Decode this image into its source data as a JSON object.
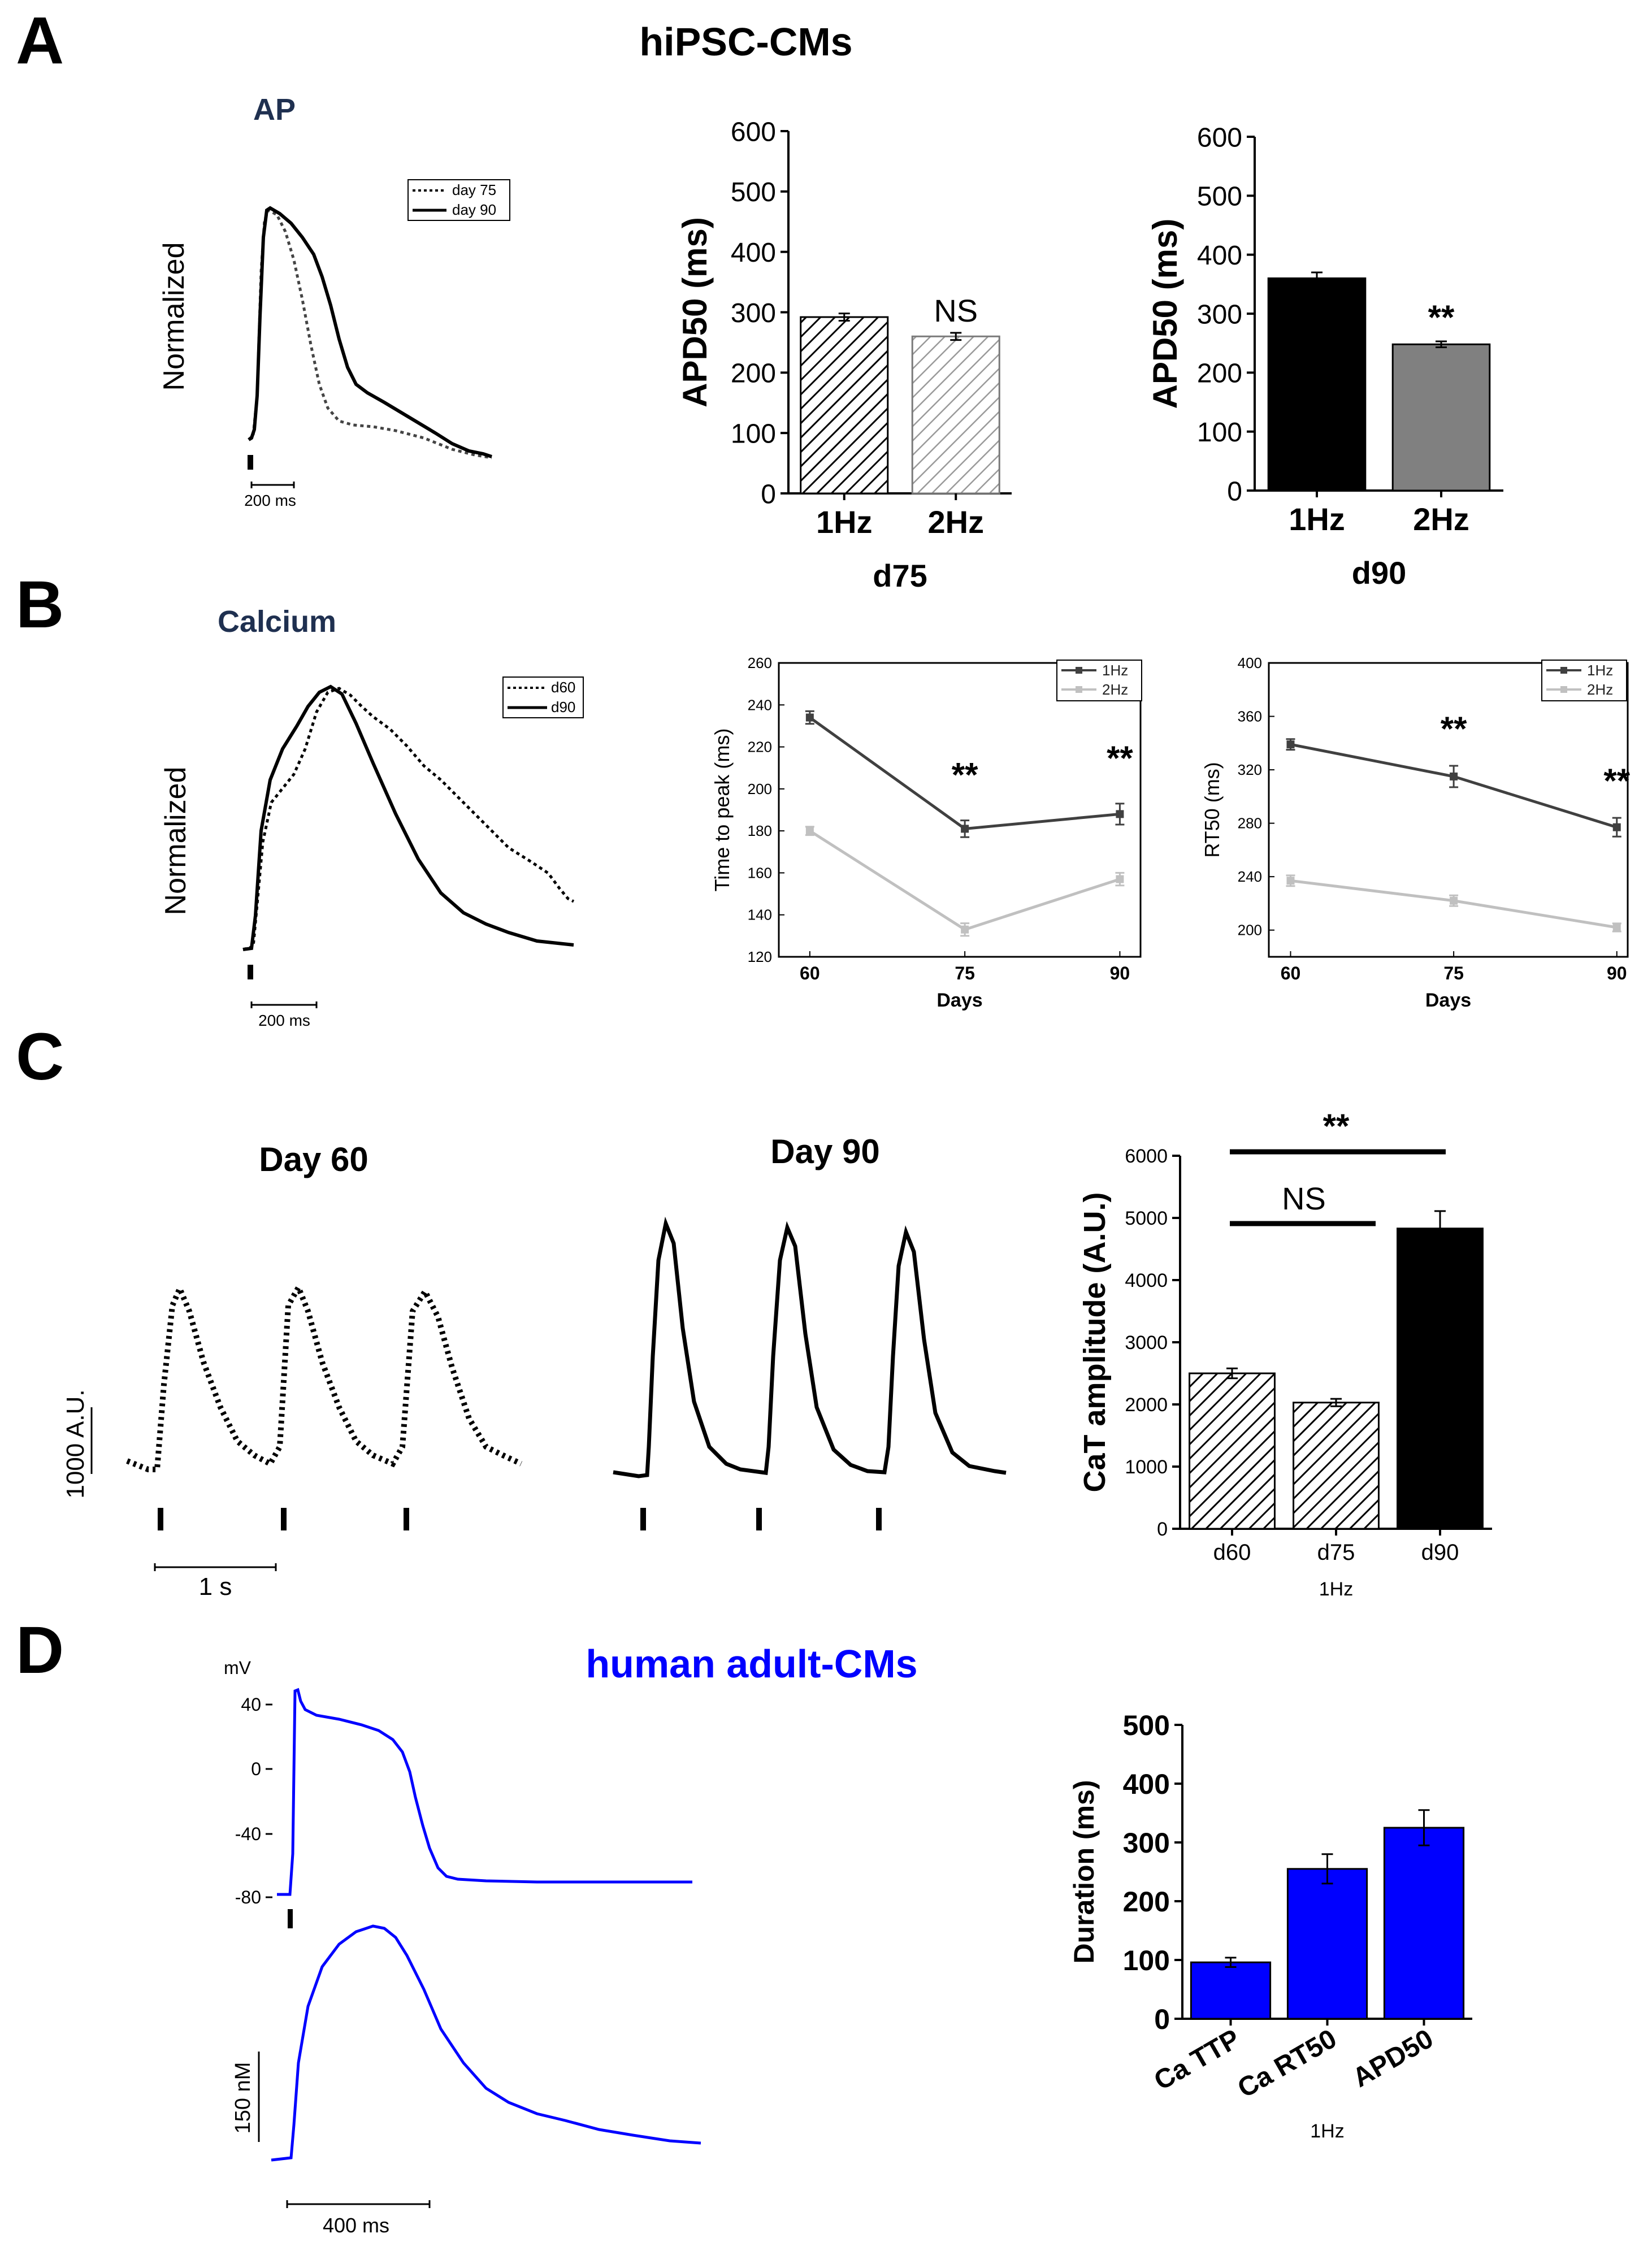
{
  "header": {
    "panel_letters": [
      "A",
      "B",
      "C",
      "D"
    ],
    "title_hipsc": "hiPSC-CMs",
    "title_adult": "human adult-CMs"
  },
  "colors": {
    "black": "#000000",
    "gray_bar": "#808080",
    "line_1hz": "#404040",
    "line_2hz": "#c0c0c0",
    "blue": "#0000ff",
    "navy_label": "#1f3050"
  },
  "traces": {
    "ap": {
      "title": "AP",
      "ylabel": "Normalized",
      "legend": [
        "day 75",
        "day 90"
      ],
      "scale_label": "200 ms"
    },
    "calcium": {
      "title": "Calcium",
      "ylabel": "Normalized",
      "legend": [
        "d60",
        "d90"
      ],
      "scale_label": "200 ms"
    },
    "cat_day60": {
      "title": "Day 60",
      "ylabel": "1000 A.U.",
      "scale_label": "1 s"
    },
    "cat_day90": {
      "title": "Day 90"
    },
    "adult_ap": {
      "unit_label": "mV",
      "yticks": [
        "40",
        "0",
        "-40",
        "-80"
      ]
    },
    "adult_ca": {
      "scale_y_label": "150 nM",
      "scale_x_label": "400 ms"
    }
  },
  "chart_data": [
    {
      "id": "apd50_d75",
      "type": "bar",
      "categories": [
        "1Hz",
        "2Hz"
      ],
      "values": [
        292,
        260
      ],
      "errors": [
        6,
        6
      ],
      "patterns": [
        "hatch-dark",
        "hatch-light"
      ],
      "ylabel": "APD50 (ms)",
      "xlabel": "d75",
      "ylim": [
        0,
        600
      ],
      "yticks": [
        0,
        100,
        200,
        300,
        400,
        500,
        600
      ],
      "annotations": [
        {
          "text": "NS",
          "category": "2Hz"
        }
      ]
    },
    {
      "id": "apd50_d90",
      "type": "bar",
      "categories": [
        "1Hz",
        "2Hz"
      ],
      "values": [
        360,
        248
      ],
      "errors": [
        10,
        5
      ],
      "patterns": [
        "solid-black",
        "solid-gray"
      ],
      "ylabel": "APD50 (ms)",
      "xlabel": "d90",
      "ylim": [
        0,
        600
      ],
      "yticks": [
        0,
        100,
        200,
        300,
        400,
        500,
        600
      ],
      "annotations": [
        {
          "text": "**",
          "category": "2Hz"
        }
      ]
    },
    {
      "id": "ttp",
      "type": "line",
      "x": [
        60,
        75,
        90
      ],
      "series": [
        {
          "name": "1Hz",
          "values": [
            234,
            181,
            188
          ],
          "errors": [
            3,
            4,
            5
          ]
        },
        {
          "name": "2Hz",
          "values": [
            180,
            133,
            157
          ],
          "errors": [
            2,
            3,
            3
          ]
        }
      ],
      "xlabel": "Days",
      "ylabel": "Time to peak (ms)",
      "xlim": [
        57,
        92
      ],
      "xticks": [
        60,
        75,
        90
      ],
      "ylim": [
        120,
        260
      ],
      "yticks": [
        120,
        140,
        160,
        180,
        200,
        220,
        240,
        260
      ],
      "legend": [
        "1Hz",
        "2Hz"
      ],
      "annotations": [
        {
          "text": "**",
          "x": 75
        },
        {
          "text": "**",
          "x": 90
        }
      ]
    },
    {
      "id": "rt50",
      "type": "line",
      "x": [
        60,
        75,
        90
      ],
      "series": [
        {
          "name": "1Hz",
          "values": [
            339,
            315,
            277
          ],
          "errors": [
            4,
            8,
            7
          ]
        },
        {
          "name": "2Hz",
          "values": [
            237,
            222,
            202
          ],
          "errors": [
            4,
            4,
            3
          ]
        }
      ],
      "xlabel": "Days",
      "ylabel": "RT50 (ms)",
      "xlim": [
        58,
        91
      ],
      "xticks": [
        60,
        75,
        90
      ],
      "ylim": [
        180,
        400
      ],
      "yticks": [
        200,
        240,
        280,
        320,
        360,
        400
      ],
      "legend": [
        "1Hz",
        "2Hz"
      ],
      "annotations": [
        {
          "text": "**",
          "x": 75
        },
        {
          "text": "**",
          "x": 90
        }
      ]
    },
    {
      "id": "cat_amp",
      "type": "bar",
      "categories": [
        "d60",
        "d75",
        "d90"
      ],
      "values": [
        2500,
        2030,
        4830
      ],
      "errors": [
        80,
        60,
        280
      ],
      "patterns": [
        "hatch-dark",
        "hatch-dark",
        "solid-black"
      ],
      "ylabel": "CaT amplitude (A.U.)",
      "xlabel": "1Hz",
      "ylim": [
        0,
        6000
      ],
      "yticks": [
        0,
        1000,
        2000,
        3000,
        4000,
        5000,
        6000
      ],
      "annotations": [
        {
          "text": "NS",
          "from": "d60",
          "to": "d75"
        },
        {
          "text": "**",
          "from": "d60",
          "to": "d90"
        }
      ]
    },
    {
      "id": "duration",
      "type": "bar",
      "categories": [
        "Ca TTP",
        "Ca RT50",
        "APD50"
      ],
      "values": [
        96,
        255,
        325
      ],
      "errors": [
        8,
        25,
        30
      ],
      "patterns": [
        "solid-blue",
        "solid-blue",
        "solid-blue"
      ],
      "ylabel": "Duration (ms)",
      "xlabel": "1Hz",
      "ylim": [
        0,
        500
      ],
      "yticks": [
        0,
        100,
        200,
        300,
        400,
        500
      ]
    }
  ]
}
